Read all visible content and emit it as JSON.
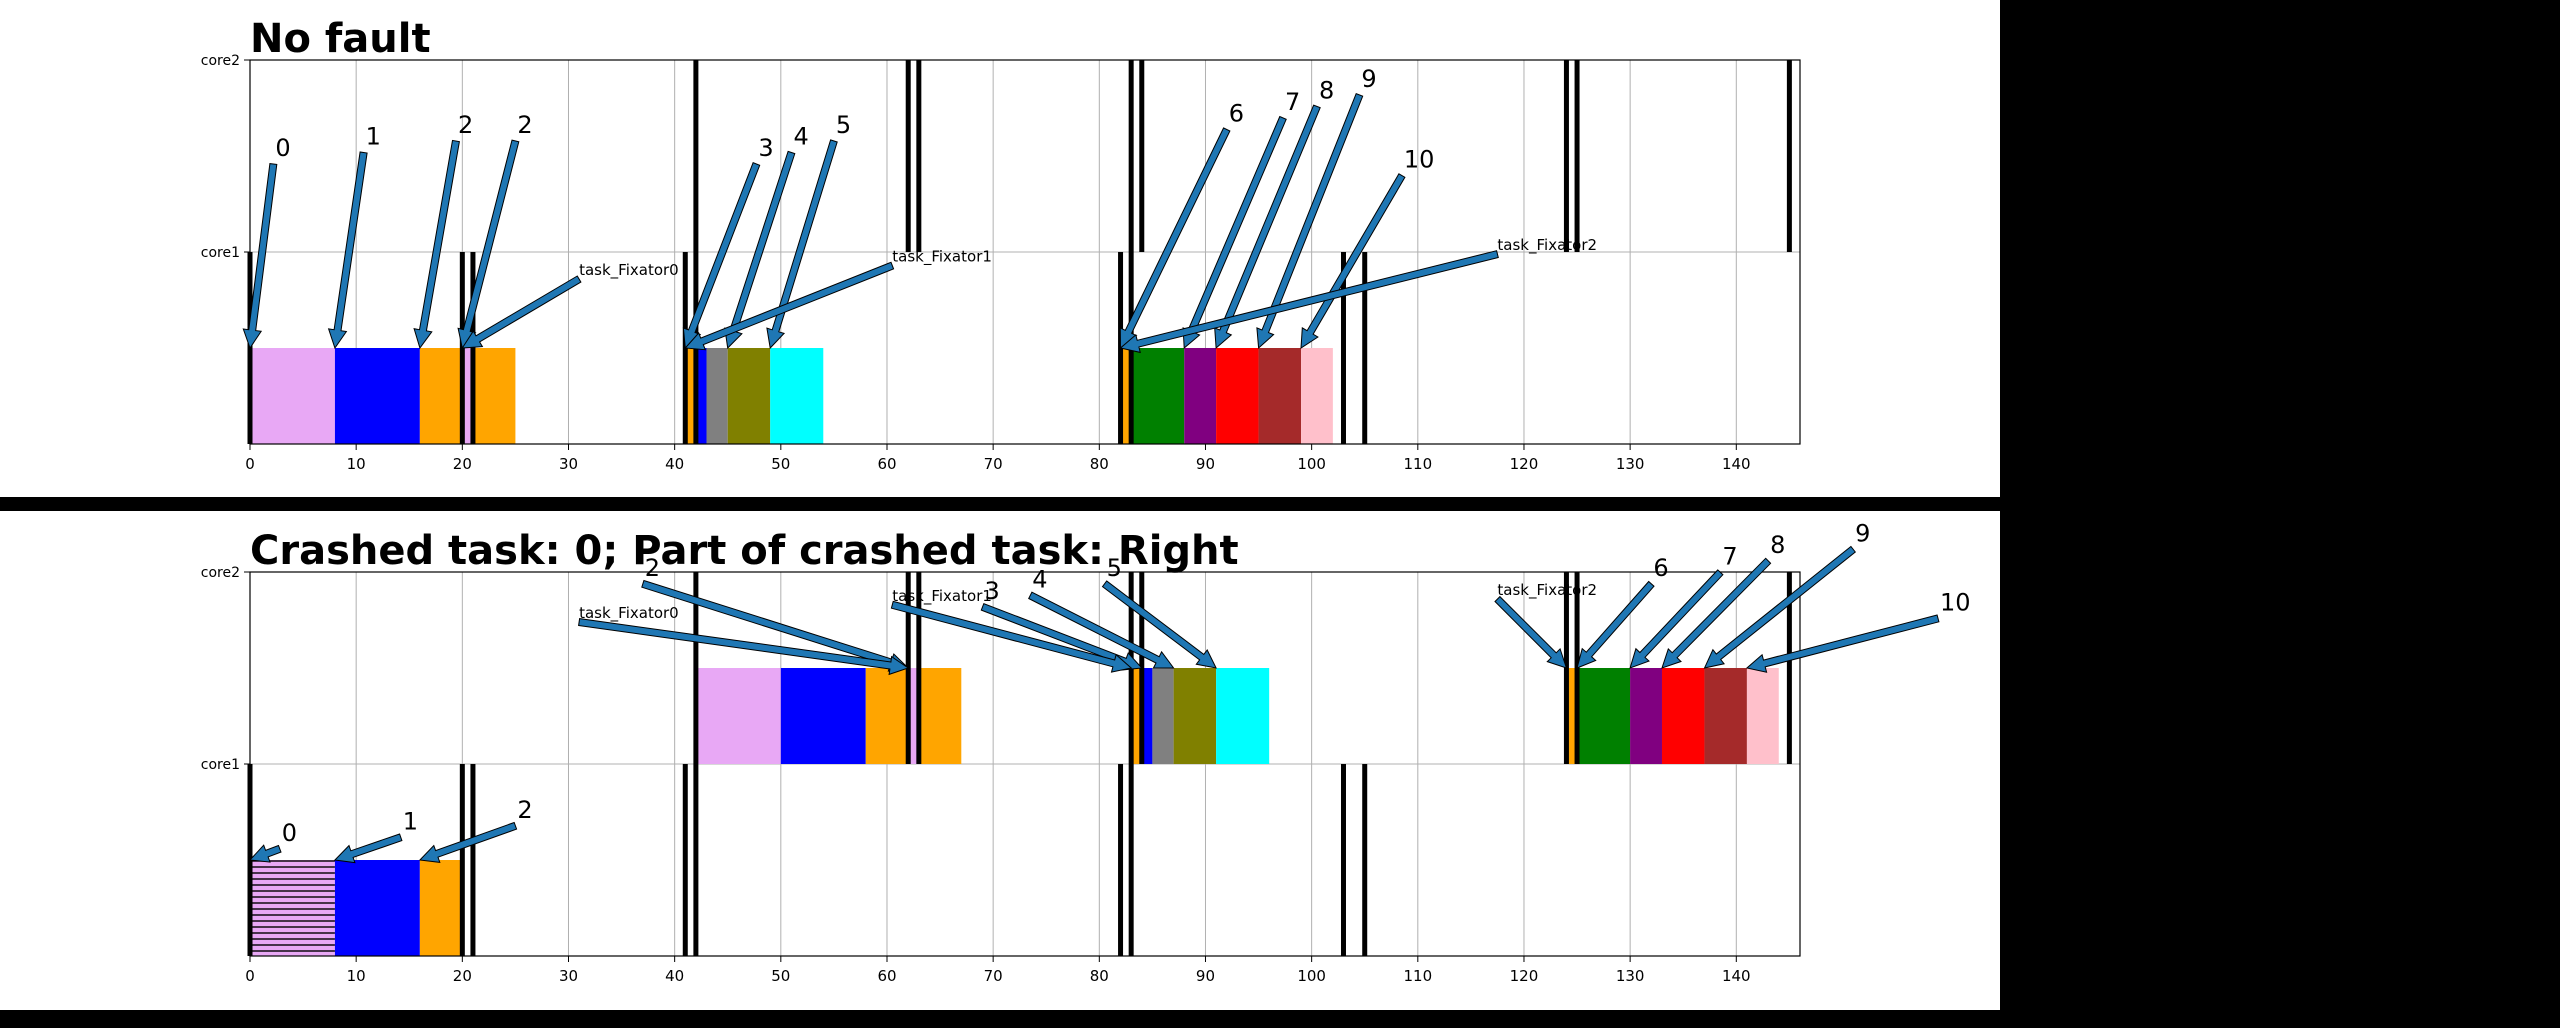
{
  "chart_data": [
    {
      "type": "gantt",
      "title": "No fault",
      "xlim": [
        0,
        146
      ],
      "xticks": [
        0,
        10,
        20,
        30,
        40,
        50,
        60,
        70,
        80,
        90,
        100,
        110,
        120,
        130,
        140
      ],
      "rows": [
        "core1",
        "core2"
      ],
      "grid": true,
      "boundaries": {
        "core2": [
          42,
          62,
          63,
          83,
          84,
          124,
          125,
          145
        ],
        "core1": [
          0,
          20,
          21,
          41,
          42,
          82,
          83,
          103,
          105
        ]
      },
      "tasks": [
        {
          "row": "core1",
          "start": 0,
          "end": 8,
          "color": "#e8a8f5"
        },
        {
          "row": "core1",
          "start": 8,
          "end": 16,
          "color": "#0000ff"
        },
        {
          "row": "core1",
          "start": 16,
          "end": 20,
          "color": "#ffa500"
        },
        {
          "row": "core1",
          "start": 20,
          "end": 21,
          "color": "#e8a8f5"
        },
        {
          "row": "core1",
          "start": 21,
          "end": 25,
          "color": "#ffa500"
        },
        {
          "row": "core1",
          "start": 41,
          "end": 42,
          "color": "#ffa500"
        },
        {
          "row": "core1",
          "start": 42,
          "end": 43,
          "color": "#0000ff"
        },
        {
          "row": "core1",
          "start": 43,
          "end": 45,
          "color": "#808080"
        },
        {
          "row": "core1",
          "start": 45,
          "end": 49,
          "color": "#808000"
        },
        {
          "row": "core1",
          "start": 49,
          "end": 54,
          "color": "#00ffff"
        },
        {
          "row": "core1",
          "start": 82,
          "end": 83,
          "color": "#ffa500"
        },
        {
          "row": "core1",
          "start": 83,
          "end": 88,
          "color": "#008000"
        },
        {
          "row": "core1",
          "start": 88,
          "end": 91,
          "color": "#800080"
        },
        {
          "row": "core1",
          "start": 91,
          "end": 95,
          "color": "#ff0000"
        },
        {
          "row": "core1",
          "start": 95,
          "end": 99,
          "color": "#a52a2a"
        },
        {
          "row": "core1",
          "start": 99,
          "end": 102,
          "color": "#ffc0cb"
        }
      ],
      "annotations": [
        {
          "text": "0",
          "x": 0,
          "row": "core1",
          "tx": 2.2,
          "ty": 1.5
        },
        {
          "text": "1",
          "x": 8,
          "row": "core1",
          "tx": 10.7,
          "ty": 1.56
        },
        {
          "text": "2",
          "x": 16,
          "row": "core1",
          "tx": 19.4,
          "ty": 1.62
        },
        {
          "text": "2",
          "x": 20,
          "row": "core1",
          "tx": 25,
          "ty": 1.62
        },
        {
          "text": "task_Fixator0",
          "x": 20,
          "row": "core1",
          "tx": 31,
          "ty": 0.88
        },
        {
          "text": "3",
          "x": 41,
          "row": "core1",
          "tx": 47.7,
          "ty": 1.5
        },
        {
          "text": "4",
          "x": 45,
          "row": "core1",
          "tx": 51,
          "ty": 1.56
        },
        {
          "text": "5",
          "x": 49,
          "row": "core1",
          "tx": 55,
          "ty": 1.62
        },
        {
          "text": "task_Fixator1",
          "x": 41,
          "row": "core1",
          "tx": 60.5,
          "ty": 0.95
        },
        {
          "text": "6",
          "x": 82,
          "row": "core1",
          "tx": 92,
          "ty": 1.68
        },
        {
          "text": "7",
          "x": 88,
          "row": "core1",
          "tx": 97.3,
          "ty": 1.74
        },
        {
          "text": "8",
          "x": 91,
          "row": "core1",
          "tx": 100.5,
          "ty": 1.8
        },
        {
          "text": "9",
          "x": 95,
          "row": "core1",
          "tx": 104.5,
          "ty": 1.86
        },
        {
          "text": "10",
          "x": 99,
          "row": "core1",
          "tx": 108.5,
          "ty": 1.44
        },
        {
          "text": "task_Fixator2",
          "x": 82,
          "row": "core1",
          "tx": 117.5,
          "ty": 1.01
        }
      ]
    },
    {
      "type": "gantt",
      "title": "Crashed task: 0; Part of crashed task: Right",
      "xlim": [
        0,
        146
      ],
      "xticks": [
        0,
        10,
        20,
        30,
        40,
        50,
        60,
        70,
        80,
        90,
        100,
        110,
        120,
        130,
        140
      ],
      "rows": [
        "core1",
        "core2"
      ],
      "grid": true,
      "boundaries": {
        "core2": [
          42,
          62,
          63,
          83,
          84,
          124,
          125,
          145
        ],
        "core1": [
          0,
          20,
          21,
          41,
          42,
          82,
          83,
          103,
          105
        ]
      },
      "tasks": [
        {
          "row": "core1",
          "start": 0,
          "end": 8,
          "color": "#e8a8f5",
          "hatch": true
        },
        {
          "row": "core1",
          "start": 8,
          "end": 16,
          "color": "#0000ff"
        },
        {
          "row": "core1",
          "start": 16,
          "end": 20,
          "color": "#ffa500"
        },
        {
          "row": "core2",
          "start": 42,
          "end": 50,
          "color": "#e8a8f5"
        },
        {
          "row": "core2",
          "start": 50,
          "end": 58,
          "color": "#0000ff"
        },
        {
          "row": "core2",
          "start": 58,
          "end": 62,
          "color": "#ffa500"
        },
        {
          "row": "core2",
          "start": 62,
          "end": 63,
          "color": "#e8a8f5"
        },
        {
          "row": "core2",
          "start": 63,
          "end": 67,
          "color": "#ffa500"
        },
        {
          "row": "core2",
          "start": 83,
          "end": 84,
          "color": "#ffa500"
        },
        {
          "row": "core2",
          "start": 84,
          "end": 85,
          "color": "#0000ff"
        },
        {
          "row": "core2",
          "start": 85,
          "end": 87,
          "color": "#808080"
        },
        {
          "row": "core2",
          "start": 87,
          "end": 91,
          "color": "#808000"
        },
        {
          "row": "core2",
          "start": 91,
          "end": 96,
          "color": "#00ffff"
        },
        {
          "row": "core2",
          "start": 124,
          "end": 125,
          "color": "#ffa500"
        },
        {
          "row": "core2",
          "start": 125,
          "end": 130,
          "color": "#008000"
        },
        {
          "row": "core2",
          "start": 130,
          "end": 133,
          "color": "#800080"
        },
        {
          "row": "core2",
          "start": 133,
          "end": 137,
          "color": "#ff0000"
        },
        {
          "row": "core2",
          "start": 137,
          "end": 141,
          "color": "#a52a2a"
        },
        {
          "row": "core2",
          "start": 141,
          "end": 144,
          "color": "#ffc0cb"
        }
      ],
      "annotations": [
        {
          "text": "0",
          "x": 0,
          "row": "core1",
          "tx": 2.8,
          "ty": 0.6
        },
        {
          "text": "1",
          "x": 8,
          "row": "core1",
          "tx": 14.2,
          "ty": 0.66
        },
        {
          "text": "2",
          "x": 16,
          "row": "core1",
          "tx": 25,
          "ty": 0.72
        },
        {
          "text": "2",
          "x": 62,
          "row": "core2",
          "tx": 37,
          "ty": 1.98
        },
        {
          "text": "task_Fixator0",
          "x": 62,
          "row": "core2",
          "tx": 31,
          "ty": 1.76
        },
        {
          "text": "3",
          "x": 84,
          "row": "core2",
          "tx": 69,
          "ty": 1.86
        },
        {
          "text": "4",
          "x": 87,
          "row": "core2",
          "tx": 73.5,
          "ty": 1.92
        },
        {
          "text": "5",
          "x": 91,
          "row": "core2",
          "tx": 80.5,
          "ty": 1.98
        },
        {
          "text": "task_Fixator1",
          "x": 83,
          "row": "core2",
          "tx": 60.5,
          "ty": 1.85
        },
        {
          "text": "6",
          "x": 125,
          "row": "core2",
          "tx": 132,
          "ty": 1.98
        },
        {
          "text": "7",
          "x": 130,
          "row": "core2",
          "tx": 138.5,
          "ty": 2.04
        },
        {
          "text": "8",
          "x": 133,
          "row": "core2",
          "tx": 143,
          "ty": 2.1
        },
        {
          "text": "9",
          "x": 137,
          "row": "core2",
          "tx": 151,
          "ty": 2.16
        },
        {
          "text": "10",
          "x": 141,
          "row": "core2",
          "tx": 159,
          "ty": 1.8
        },
        {
          "text": "task_Fixator2",
          "x": 124,
          "row": "core2",
          "tx": 117.5,
          "ty": 1.88
        }
      ]
    }
  ]
}
